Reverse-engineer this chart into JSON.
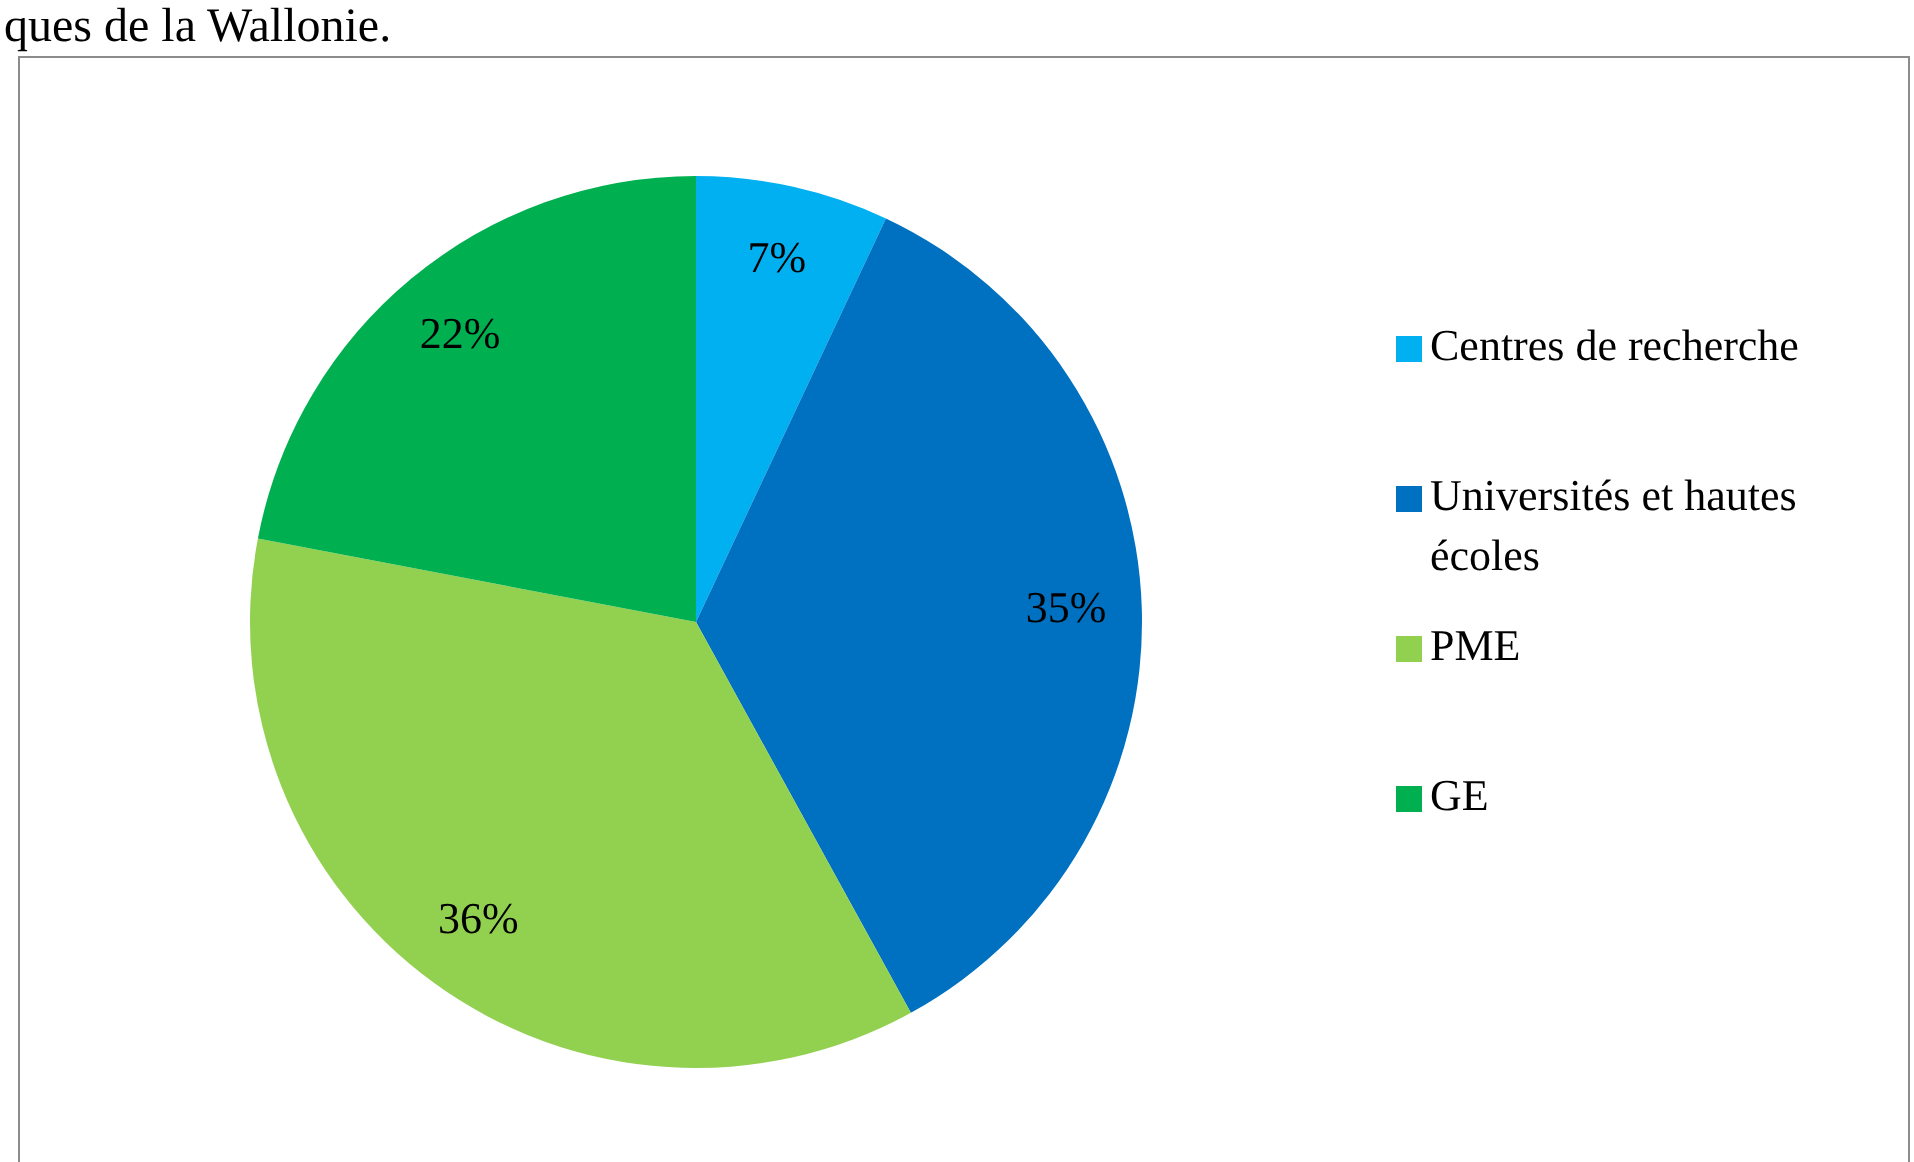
{
  "chart_data": {
    "type": "pie",
    "categories": [
      "Centres de recherche",
      "Universités et hautes écoles",
      "PME",
      "GE"
    ],
    "values": [
      7,
      35,
      36,
      22
    ],
    "colors": [
      "#00b0f0",
      "#0070c0",
      "#92d050",
      "#00b050"
    ],
    "value_labels": [
      "7%",
      "35%",
      "36%",
      "22%"
    ],
    "legend": "right",
    "annotations": [
      "ques de la Wallonie."
    ]
  }
}
